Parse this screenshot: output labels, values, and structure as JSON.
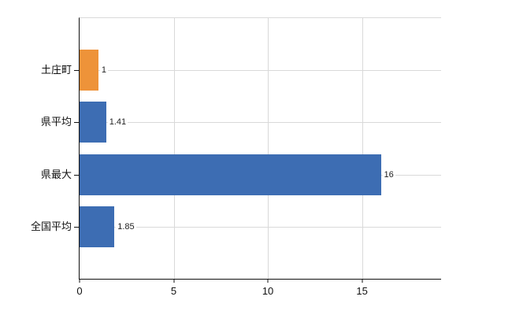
{
  "chart_data": {
    "type": "bar",
    "orientation": "horizontal",
    "title": "",
    "categories": [
      "土庄町",
      "県平均",
      "県最大",
      "全国平均"
    ],
    "values": [
      1,
      1.41,
      16,
      1.85
    ],
    "value_labels": [
      "1",
      "1.41",
      "16",
      "1.85"
    ],
    "bar_colors": [
      "#ee9339",
      "#3d6db3",
      "#3d6db3",
      "#3d6db3"
    ],
    "highlight_index": 0,
    "xlabel": "",
    "ylabel": "",
    "xticks": [
      0,
      5,
      10,
      15
    ],
    "xlim": [
      0,
      19.2
    ],
    "grid": "on",
    "legend": "none",
    "colors": {
      "highlight": "#ee9339",
      "base": "#3d6db3",
      "gridline": "#d9d9d9",
      "axis": "#111111",
      "text": "#111111"
    }
  }
}
